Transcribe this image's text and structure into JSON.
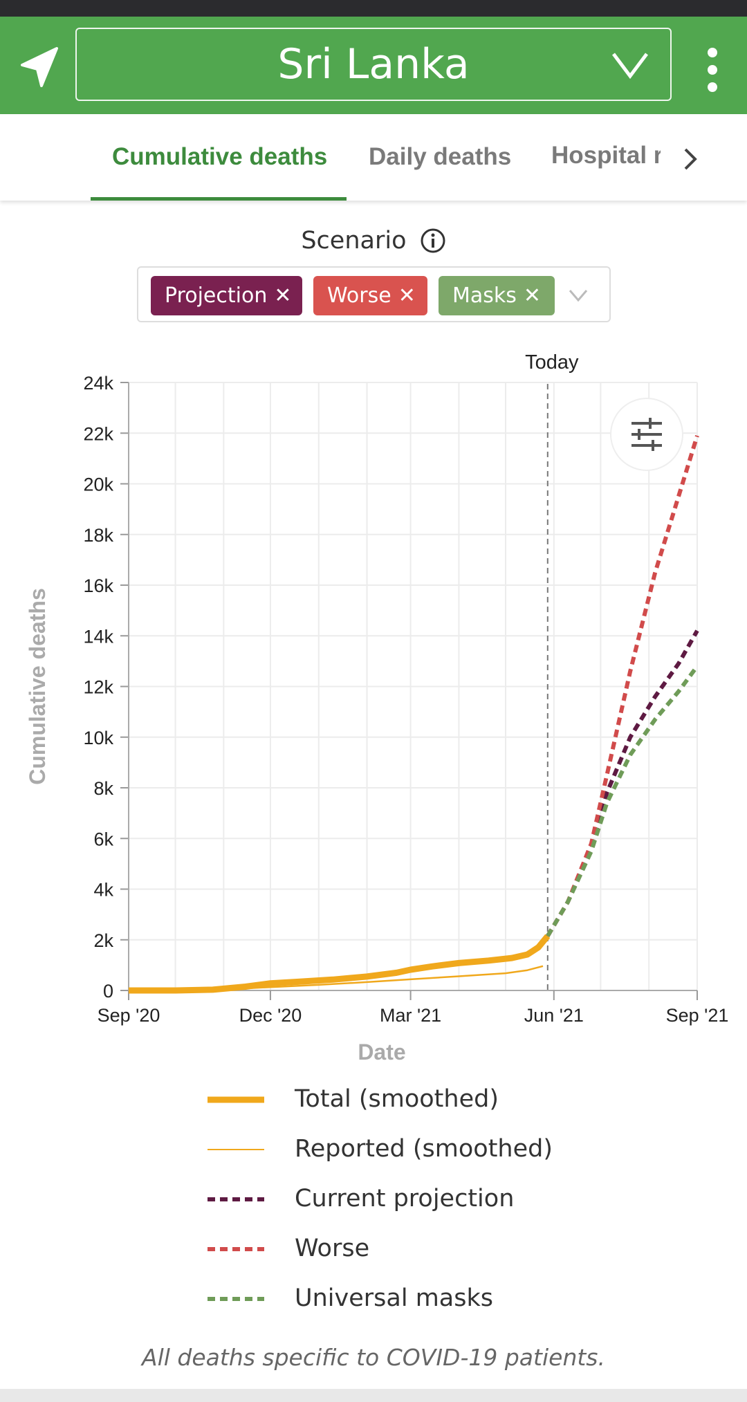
{
  "app": {
    "country": "Sri Lanka",
    "brand_color": "#51a74f",
    "icons": [
      "navigation-arrow-icon",
      "chevron-down-icon",
      "more-vert-icon"
    ]
  },
  "tabs": [
    {
      "label": "Cumulative deaths",
      "active": true
    },
    {
      "label": "Daily deaths",
      "active": false
    },
    {
      "label": "Hospital r",
      "active": false
    }
  ],
  "scenario": {
    "label": "Scenario",
    "chips": [
      {
        "label": "Projection",
        "color": "#7a2150"
      },
      {
        "label": "Worse",
        "color": "#d9534f"
      },
      {
        "label": "Masks",
        "color": "#7ea86a"
      }
    ],
    "remove_glyph": "✕"
  },
  "chart_data": {
    "type": "line",
    "xlabel": "Date",
    "ylabel": "Cumulative deaths",
    "today_label": "Today",
    "x_ticks": [
      "Sep '20",
      "Dec '20",
      "Mar '21",
      "Jun '21",
      "Sep '21"
    ],
    "y_ticks": [
      "0",
      "2k",
      "4k",
      "6k",
      "8k",
      "10k",
      "12k",
      "14k",
      "16k",
      "18k",
      "20k",
      "22k",
      "24k"
    ],
    "xlim": [
      "2020-09-01",
      "2021-09-01"
    ],
    "ylim": [
      0,
      24000
    ],
    "today": "2021-05-28",
    "grid": true,
    "series": [
      {
        "name": "Total (smoothed)",
        "color": "#f0a81c",
        "style": "solid-thick",
        "points": [
          [
            "2020-09-01",
            0
          ],
          [
            "2020-10-01",
            0
          ],
          [
            "2020-10-25",
            30
          ],
          [
            "2020-11-15",
            150
          ],
          [
            "2020-12-01",
            280
          ],
          [
            "2020-12-20",
            350
          ],
          [
            "2021-01-10",
            430
          ],
          [
            "2021-02-01",
            550
          ],
          [
            "2021-02-20",
            700
          ],
          [
            "2021-03-01",
            820
          ],
          [
            "2021-03-15",
            950
          ],
          [
            "2021-04-01",
            1080
          ],
          [
            "2021-04-20",
            1180
          ],
          [
            "2021-05-05",
            1280
          ],
          [
            "2021-05-15",
            1420
          ],
          [
            "2021-05-22",
            1700
          ],
          [
            "2021-05-28",
            2150
          ]
        ]
      },
      {
        "name": "Reported (smoothed)",
        "color": "#f0a81c",
        "style": "solid-thin",
        "points": [
          [
            "2020-09-01",
            0
          ],
          [
            "2020-10-25",
            10
          ],
          [
            "2020-12-01",
            130
          ],
          [
            "2021-01-01",
            220
          ],
          [
            "2021-02-01",
            330
          ],
          [
            "2021-03-01",
            440
          ],
          [
            "2021-04-01",
            560
          ],
          [
            "2021-05-01",
            680
          ],
          [
            "2021-05-15",
            800
          ],
          [
            "2021-05-25",
            960
          ]
        ]
      },
      {
        "name": "Current projection",
        "color": "#5e1a42",
        "style": "dashed",
        "points": [
          [
            "2021-05-28",
            2150
          ],
          [
            "2021-06-10",
            3500
          ],
          [
            "2021-06-25",
            5600
          ],
          [
            "2021-07-05",
            7800
          ],
          [
            "2021-07-20",
            10000
          ],
          [
            "2021-08-05",
            11600
          ],
          [
            "2021-08-20",
            12900
          ],
          [
            "2021-09-01",
            14200
          ]
        ]
      },
      {
        "name": "Worse",
        "color": "#d14b4b",
        "style": "dashed",
        "points": [
          [
            "2021-05-28",
            2150
          ],
          [
            "2021-06-10",
            3500
          ],
          [
            "2021-06-25",
            5800
          ],
          [
            "2021-07-05",
            8500
          ],
          [
            "2021-07-20",
            12600
          ],
          [
            "2021-08-05",
            16500
          ],
          [
            "2021-08-20",
            19500
          ],
          [
            "2021-09-01",
            21900
          ]
        ]
      },
      {
        "name": "Universal masks",
        "color": "#6f9c58",
        "style": "dashed",
        "points": [
          [
            "2021-05-28",
            2150
          ],
          [
            "2021-06-10",
            3500
          ],
          [
            "2021-06-25",
            5500
          ],
          [
            "2021-07-05",
            7400
          ],
          [
            "2021-07-20",
            9300
          ],
          [
            "2021-08-05",
            10700
          ],
          [
            "2021-08-20",
            11800
          ],
          [
            "2021-09-01",
            12800
          ]
        ]
      }
    ]
  },
  "legend": [
    {
      "label": "Total (smoothed)"
    },
    {
      "label": "Reported (smoothed)"
    },
    {
      "label": "Current projection"
    },
    {
      "label": "Worse"
    },
    {
      "label": "Universal masks"
    }
  ],
  "footnote": "All deaths specific to COVID-19 patients."
}
